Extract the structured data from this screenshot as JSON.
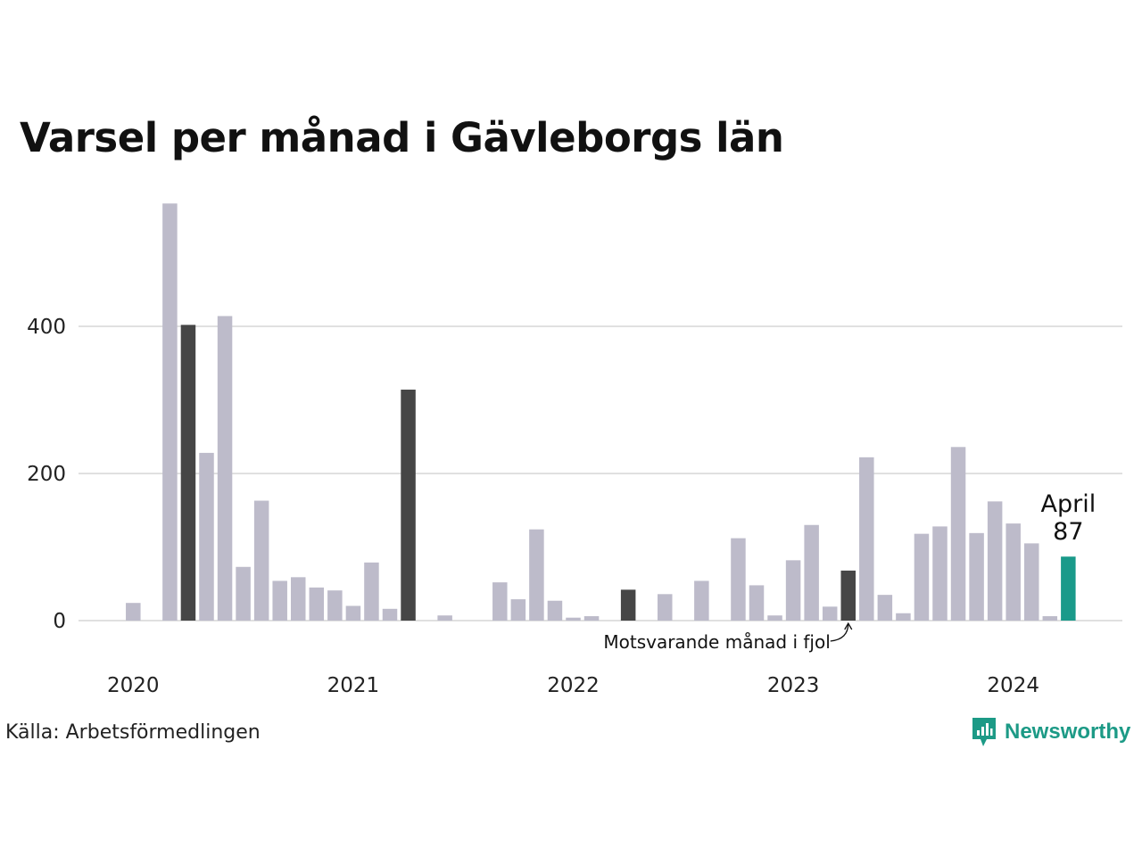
{
  "chart_data": {
    "type": "bar",
    "title": "Varsel per månad i Gävleborgs län",
    "xlabel": "",
    "ylabel": "",
    "ylim": [
      0,
      570
    ],
    "y_ticks": [
      0,
      200,
      400
    ],
    "x_tick_labels": [
      "2020",
      "2021",
      "2022",
      "2023",
      "2024"
    ],
    "grid": "horizontal",
    "legend": "none",
    "categories": [
      "2019-12",
      "2020-01",
      "2020-02",
      "2020-03",
      "2020-04",
      "2020-05",
      "2020-06",
      "2020-07",
      "2020-08",
      "2020-09",
      "2020-10",
      "2020-11",
      "2020-12",
      "2021-01",
      "2021-02",
      "2021-03",
      "2021-04",
      "2021-05",
      "2021-06",
      "2021-07",
      "2021-08",
      "2021-09",
      "2021-10",
      "2021-11",
      "2021-12",
      "2022-01",
      "2022-02",
      "2022-03",
      "2022-04",
      "2022-05",
      "2022-06",
      "2022-07",
      "2022-08",
      "2022-09",
      "2022-10",
      "2022-11",
      "2022-12",
      "2023-01",
      "2023-02",
      "2023-03",
      "2023-04",
      "2023-05",
      "2023-06",
      "2023-07",
      "2023-08",
      "2023-09",
      "2023-10",
      "2023-11",
      "2023-12",
      "2024-01",
      "2024-02",
      "2024-03",
      "2024-04"
    ],
    "values": [
      0,
      24,
      0,
      567,
      402,
      228,
      414,
      73,
      163,
      54,
      59,
      45,
      41,
      20,
      79,
      16,
      314,
      0,
      7,
      0,
      0,
      52,
      29,
      124,
      27,
      4,
      6,
      0,
      42,
      0,
      36,
      0,
      54,
      0,
      112,
      48,
      7,
      82,
      130,
      19,
      68,
      222,
      35,
      10,
      118,
      128,
      236,
      119,
      162,
      132,
      105,
      6,
      87
    ],
    "same_month_indices": [
      4,
      16,
      28,
      40
    ],
    "current_index": 52,
    "highlight": {
      "month": "April",
      "value": "87"
    },
    "annotation": "Motsvarande månad i fjol",
    "colors": {
      "default": "#bdbbca",
      "same_month": "#464646",
      "current": "#1a9a8a",
      "grid": "#e0e0e0"
    }
  },
  "footer": {
    "source": "Källa: Arbetsförmedlingen",
    "brand": "Newsworthy",
    "brand_color": "#1c9a86"
  }
}
